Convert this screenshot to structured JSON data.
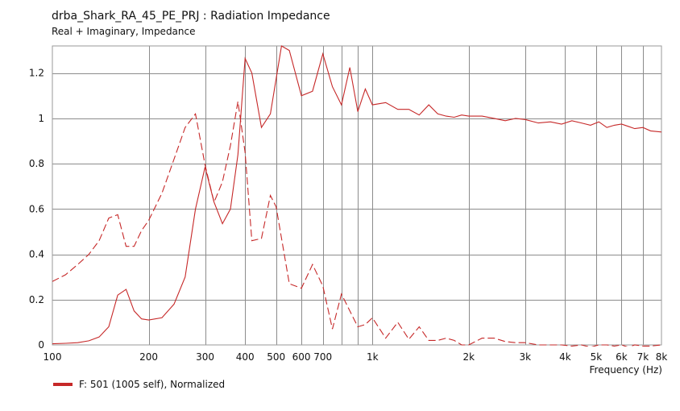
{
  "header": {
    "title": "drba_Shark_RA_45_PE_PRJ : Radiation Impedance",
    "subtitle": "Real + Imaginary, Impedance"
  },
  "legend": {
    "label": "F: 501 (1005 self), Normalized",
    "color": "#c62828"
  },
  "chart_data": {
    "type": "line",
    "title": "drba_Shark_RA_45_PE_PRJ : Radiation Impedance",
    "subtitle": "Real + Imaginary, Impedance",
    "xlabel": "Frequency  (Hz)",
    "ylabel": "",
    "xscale": "log",
    "xlim": [
      100,
      8000
    ],
    "ylim": [
      0,
      1.32
    ],
    "grid": true,
    "x_tick_labels": [
      {
        "value": 100,
        "label": "100"
      },
      {
        "value": 200,
        "label": "200"
      },
      {
        "value": 300,
        "label": "300"
      },
      {
        "value": 400,
        "label": "400"
      },
      {
        "value": 500,
        "label": "500"
      },
      {
        "value": 600,
        "label": "600"
      },
      {
        "value": 700,
        "label": "700"
      },
      {
        "value": 1000,
        "label": "1k"
      },
      {
        "value": 2000,
        "label": "2k"
      },
      {
        "value": 3000,
        "label": "3k"
      },
      {
        "value": 4000,
        "label": "4k"
      },
      {
        "value": 5000,
        "label": "5k"
      },
      {
        "value": 6000,
        "label": "6k"
      },
      {
        "value": 7000,
        "label": "7k"
      },
      {
        "value": 8000,
        "label": "8k"
      }
    ],
    "x_minor_grid": [
      800,
      900
    ],
    "y_ticks": [
      {
        "value": 0,
        "label": "0"
      },
      {
        "value": 0.2,
        "label": "0.2"
      },
      {
        "value": 0.4,
        "label": "0.4"
      },
      {
        "value": 0.6,
        "label": "0.6"
      },
      {
        "value": 0.8,
        "label": "0.8"
      },
      {
        "value": 1,
        "label": "1"
      },
      {
        "value": 1.2,
        "label": "1.2"
      }
    ],
    "series": [
      {
        "style": "solid",
        "color": "#c62828",
        "x": [
          100,
          110,
          120,
          130,
          140,
          150,
          160,
          170,
          180,
          190,
          200,
          220,
          240,
          260,
          280,
          300,
          320,
          340,
          360,
          380,
          400,
          420,
          450,
          480,
          520,
          550,
          600,
          650,
          700,
          750,
          800,
          850,
          900,
          950,
          1000,
          1100,
          1200,
          1300,
          1400,
          1500,
          1600,
          1700,
          1800,
          1900,
          2000,
          2200,
          2400,
          2600,
          2800,
          3000,
          3300,
          3600,
          3900,
          4200,
          4500,
          4800,
          5100,
          5400,
          5700,
          6000,
          6300,
          6600,
          7000,
          7400,
          8000
        ],
        "values": [
          0.005,
          0.007,
          0.01,
          0.018,
          0.035,
          0.08,
          0.22,
          0.245,
          0.15,
          0.115,
          0.11,
          0.12,
          0.18,
          0.3,
          0.6,
          0.785,
          0.63,
          0.535,
          0.6,
          0.84,
          1.265,
          1.2,
          0.96,
          1.02,
          1.32,
          1.3,
          1.1,
          1.12,
          1.285,
          1.14,
          1.06,
          1.225,
          1.03,
          1.13,
          1.06,
          1.07,
          1.04,
          1.04,
          1.015,
          1.06,
          1.02,
          1.01,
          1.005,
          1.015,
          1.01,
          1.01,
          1.0,
          0.99,
          1.0,
          0.995,
          0.98,
          0.985,
          0.975,
          0.99,
          0.98,
          0.97,
          0.985,
          0.96,
          0.97,
          0.975,
          0.965,
          0.955,
          0.96,
          0.945,
          0.94
        ]
      },
      {
        "style": "dashed",
        "color": "#c62828",
        "x": [
          100,
          110,
          120,
          130,
          140,
          150,
          160,
          170,
          180,
          190,
          200,
          220,
          240,
          260,
          280,
          300,
          320,
          340,
          360,
          380,
          400,
          420,
          450,
          480,
          500,
          550,
          600,
          650,
          700,
          750,
          800,
          850,
          900,
          950,
          1000,
          1100,
          1200,
          1300,
          1400,
          1500,
          1600,
          1700,
          1800,
          1900,
          2000,
          2200,
          2400,
          2600,
          2800,
          3000,
          3300,
          3600,
          3900,
          4200,
          4500,
          4800,
          5100,
          5400,
          5700,
          6000,
          6300,
          6600,
          7000,
          7400,
          8000
        ],
        "values": [
          0.28,
          0.31,
          0.355,
          0.4,
          0.46,
          0.56,
          0.575,
          0.435,
          0.435,
          0.505,
          0.55,
          0.67,
          0.82,
          0.96,
          1.02,
          0.795,
          0.63,
          0.72,
          0.88,
          1.075,
          0.85,
          0.46,
          0.47,
          0.66,
          0.61,
          0.27,
          0.25,
          0.355,
          0.26,
          0.07,
          0.225,
          0.15,
          0.08,
          0.09,
          0.12,
          0.03,
          0.1,
          0.025,
          0.08,
          0.02,
          0.02,
          0.03,
          0.02,
          0.0,
          0.0,
          0.03,
          0.03,
          0.015,
          0.01,
          0.01,
          0.0,
          0.0,
          0.0,
          -0.005,
          0.0,
          -0.01,
          0.0,
          0.0,
          -0.005,
          0.0,
          -0.01,
          0.0,
          -0.005,
          -0.005,
          0.0
        ]
      }
    ]
  }
}
